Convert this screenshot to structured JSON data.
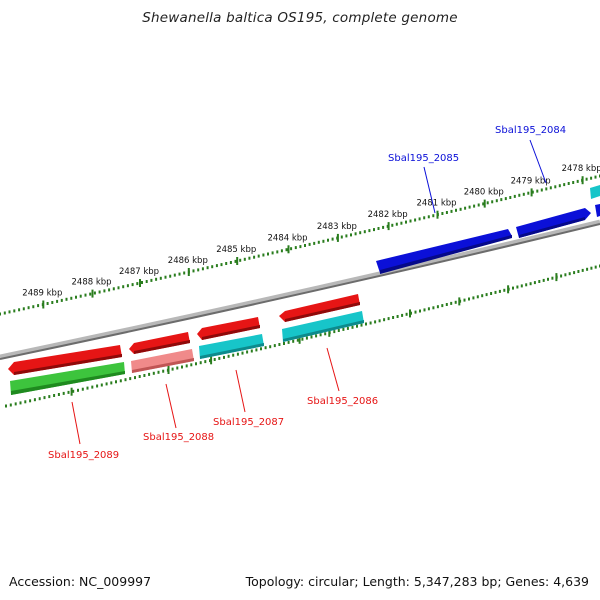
{
  "title": "Shewanella baltica OS195, complete genome",
  "footer": {
    "accession": "Accession: NC_009997",
    "topology": "Topology: circular; Length: 5,347,283 bp; Genes: 4,639"
  },
  "ruler": {
    "labels": [
      "2489 kbp",
      "2488 kbp",
      "2487 kbp",
      "2486 kbp",
      "2485 kbp",
      "2484 kbp",
      "2483 kbp",
      "2482 kbp",
      "2481 kbp",
      "2480 kbp",
      "2479 kbp",
      "2478 kbp"
    ],
    "tick_color": "#2a7d1e"
  },
  "genes": [
    {
      "id": "Sbal195_2084",
      "label": "Sbal195_2084",
      "strand": "forward",
      "color": "#0b10d8"
    },
    {
      "id": "Sbal195_2085",
      "label": "Sbal195_2085",
      "strand": "forward",
      "color": "#0b10d8"
    },
    {
      "id": "Sbal195_2086",
      "label": "Sbal195_2086",
      "strand": "reverse",
      "color": "#e61515"
    },
    {
      "id": "Sbal195_2087",
      "label": "Sbal195_2087",
      "strand": "reverse",
      "color": "#e61515"
    },
    {
      "id": "Sbal195_2088",
      "label": "Sbal195_2088",
      "strand": "reverse",
      "color": "#e61515"
    },
    {
      "id": "Sbal195_2089",
      "label": "Sbal195_2089",
      "strand": "reverse",
      "color": "#e61515"
    }
  ],
  "colors": {
    "backbone": "#8a8a8a",
    "forward_gene": "#0b10d8",
    "reverse_gene": "#e61515",
    "cog_cyan": "#17c5c9",
    "cog_green": "#3dc43d",
    "cog_pink": "#f08a8a",
    "label_forward": "#0b10d8",
    "label_reverse": "#e61515"
  }
}
